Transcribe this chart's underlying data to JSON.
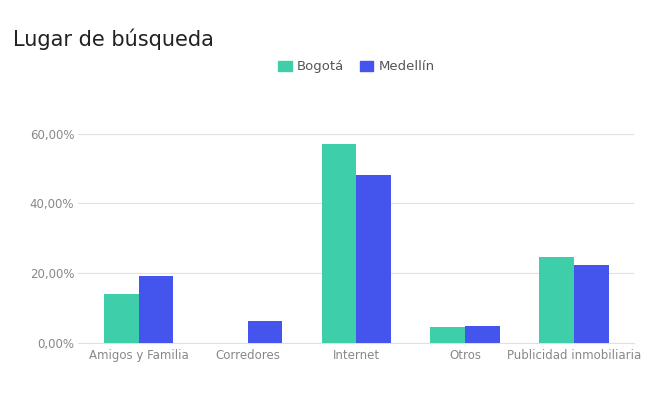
{
  "title": "Lugar de búsqueda",
  "categories": [
    "Amigos y Familia",
    "Corredores",
    "Internet",
    "Otros",
    "Publicidad inmobiliaria"
  ],
  "series": [
    {
      "name": "Bogotá",
      "values": [
        0.14,
        0.0,
        0.57,
        0.045,
        0.245
      ],
      "color": "#3ecfaa"
    },
    {
      "name": "Medellín",
      "values": [
        0.19,
        0.062,
        0.48,
        0.048,
        0.222
      ],
      "color": "#4455ee"
    }
  ],
  "ylim": [
    0,
    0.66
  ],
  "yticks": [
    0.0,
    0.2,
    0.4,
    0.6
  ],
  "ytick_labels": [
    "0,00%",
    "20,00%",
    "40,00%",
    "60,00%"
  ],
  "bar_width": 0.32,
  "background_color": "#ffffff",
  "title_fontsize": 15,
  "legend_fontsize": 9.5,
  "tick_fontsize": 8.5,
  "grid_color": "#e0e0e0"
}
